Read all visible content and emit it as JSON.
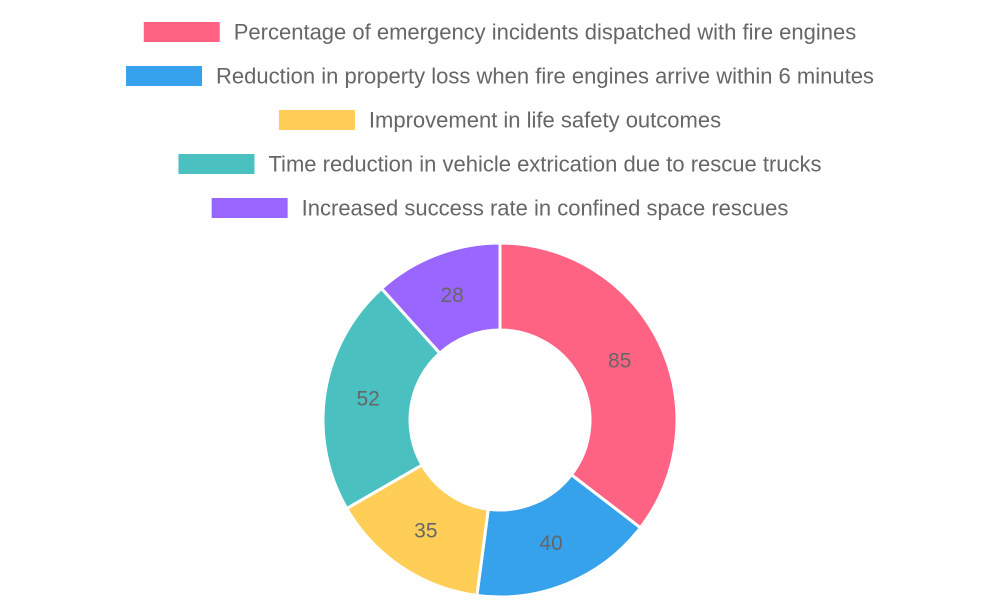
{
  "chart_data": {
    "type": "doughnut",
    "categories": [
      "Percentage of emergency incidents dispatched with fire engines",
      "Reduction in property loss when fire engines arrive within 6 minutes",
      "Improvement in life safety outcomes",
      "Time reduction in vehicle extrication due to rescue trucks",
      "Increased success rate in confined space rescues"
    ],
    "values": [
      85,
      40,
      35,
      52,
      28
    ],
    "colors": [
      "#ff6384",
      "#36a2eb",
      "#ffce56",
      "#4bc0c0",
      "#9966ff"
    ],
    "legend": "top"
  }
}
